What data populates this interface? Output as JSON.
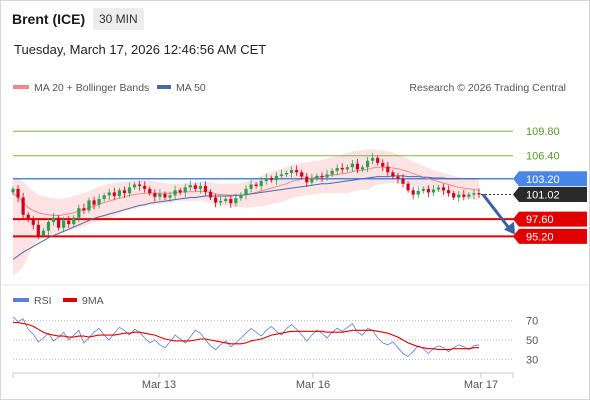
{
  "header": {
    "instrument": "Brent (ICE)",
    "timeframe": "30 MIN",
    "timestamp": "Tuesday, March 17, 2026 12:46:56 AM CET"
  },
  "legend": {
    "ma20_label": "MA 20 + Bollinger Bands",
    "ma50_label": "MA 50",
    "rsi_label": "RSI",
    "ma9_label": "9MA"
  },
  "copyright": "Research © 2026 Trading Central",
  "colors": {
    "up_candle": "#2e9e4f",
    "down_candle": "#d0021b",
    "ma20": "#f08a8a",
    "ma50": "#4a6aa8",
    "band_fill": "#fde3e3",
    "resistance": "#7db84a",
    "pivot": "#4a86e8",
    "support": "#e00000",
    "last_price_bg": "#2a2a2a",
    "arrow": "#3a63a3",
    "rsi": "#5b7fd6",
    "rsi_ma": "#e00000"
  },
  "chart_data": [
    {
      "type": "candlestick",
      "y_range": [
        89,
        114
      ],
      "x_ticks": [
        "Mar 13",
        "Mar 16",
        "Mar 17"
      ],
      "levels": [
        {
          "value": 109.8,
          "label": "109.80",
          "kind": "resistance"
        },
        {
          "value": 106.4,
          "label": "106.40",
          "kind": "resistance"
        },
        {
          "value": 103.2,
          "label": "103.20",
          "kind": "pivot"
        },
        {
          "value": 101.02,
          "label": "101.02",
          "kind": "last"
        },
        {
          "value": 97.6,
          "label": "97.60",
          "kind": "support"
        },
        {
          "value": 95.2,
          "label": "95.20",
          "kind": "support"
        }
      ],
      "close_series": [
        101.8,
        100.6,
        98.2,
        97.5,
        96.8,
        95.3,
        96.0,
        97.2,
        97.8,
        96.4,
        97.4,
        96.9,
        97.8,
        99.1,
        98.8,
        100.2,
        99.6,
        100.4,
        100.9,
        101.3,
        100.8,
        101.6,
        101.2,
        102.0,
        102.4,
        102.2,
        101.8,
        101.2,
        100.7,
        101.1,
        100.6,
        100.9,
        101.6,
        101.3,
        102.0,
        102.3,
        101.8,
        102.2,
        101.4,
        100.6,
        99.9,
        100.1,
        100.4,
        99.8,
        100.5,
        101.0,
        101.8,
        102.4,
        102.2,
        102.9,
        103.3,
        103.0,
        103.6,
        103.8,
        104.0,
        104.4,
        104.1,
        103.5,
        102.7,
        103.2,
        103.6,
        103.4,
        103.8,
        104.3,
        104.7,
        104.5,
        104.8,
        105.3,
        104.5,
        104.8,
        105.7,
        106.1,
        105.4,
        104.9,
        104.1,
        103.5,
        103.2,
        102.5,
        101.6,
        101.0,
        101.5,
        101.8,
        101.3,
        101.7,
        102.0,
        101.6,
        101.2,
        100.6,
        101.0,
        100.7,
        101.0,
        101.2,
        101.02
      ],
      "ma20_series": [
        101.2,
        100.6,
        99.9,
        99.2,
        98.8,
        98.5,
        98.3,
        98.2,
        98.1,
        98.1,
        98.2,
        98.3,
        98.5,
        98.7,
        98.9,
        99.2,
        99.4,
        99.7,
        99.9,
        100.1,
        100.3,
        100.5,
        100.7,
        100.9,
        101.0,
        101.1,
        101.2,
        101.2,
        101.2,
        101.2,
        101.2,
        101.2,
        101.3,
        101.3,
        101.4,
        101.4,
        101.4,
        101.5,
        101.4,
        101.3,
        101.1,
        101.0,
        101.0,
        100.9,
        100.9,
        100.9,
        101.0,
        101.1,
        101.3,
        101.5,
        101.7,
        101.9,
        102.1,
        102.3,
        102.5,
        102.8,
        103.0,
        103.1,
        103.2,
        103.3,
        103.4,
        103.5,
        103.6,
        103.7,
        103.8,
        103.9,
        104.0,
        104.2,
        104.3,
        104.4,
        104.5,
        104.7,
        104.8,
        104.8,
        104.8,
        104.7,
        104.6,
        104.4,
        104.2,
        103.9,
        103.7,
        103.4,
        103.2,
        103.0,
        102.8,
        102.6,
        102.4,
        102.2,
        102.0,
        101.9,
        101.8,
        101.7,
        101.6
      ],
      "ma50_series": [
        92.0,
        92.5,
        93.0,
        93.4,
        93.8,
        94.2,
        94.6,
        95.0,
        95.3,
        95.6,
        95.9,
        96.2,
        96.5,
        96.8,
        97.1,
        97.4,
        97.7,
        97.9,
        98.1,
        98.3,
        98.5,
        98.7,
        98.9,
        99.1,
        99.3,
        99.5,
        99.6,
        99.8,
        99.9,
        100.0,
        100.1,
        100.2,
        100.3,
        100.4,
        100.5,
        100.6,
        100.6,
        100.7,
        100.8,
        100.8,
        100.8,
        100.8,
        100.8,
        100.8,
        100.9,
        100.9,
        101.0,
        101.1,
        101.2,
        101.3,
        101.4,
        101.5,
        101.6,
        101.7,
        101.8,
        101.9,
        102.0,
        102.1,
        102.2,
        102.3,
        102.4,
        102.5,
        102.5,
        102.6,
        102.7,
        102.8,
        102.9,
        103.0,
        103.1,
        103.2,
        103.3,
        103.4,
        103.5,
        103.5,
        103.5,
        103.6,
        103.6,
        103.6,
        103.5,
        103.5,
        103.5,
        103.4,
        103.4,
        103.3,
        103.3,
        103.3,
        103.2,
        103.2,
        103.2,
        103.2,
        103.2,
        103.2,
        103.2
      ],
      "bb_upper_series": [
        103.6,
        103.2,
        102.8,
        102.1,
        101.5,
        101.0,
        100.8,
        100.6,
        100.5,
        100.4,
        100.5,
        100.6,
        100.8,
        101.0,
        101.2,
        101.5,
        101.8,
        102.1,
        102.3,
        102.5,
        102.6,
        102.7,
        102.8,
        102.9,
        103.0,
        103.0,
        103.0,
        102.9,
        102.8,
        102.7,
        102.6,
        102.5,
        102.5,
        102.5,
        102.6,
        102.7,
        102.7,
        102.8,
        102.8,
        102.7,
        102.6,
        102.5,
        102.5,
        102.5,
        102.5,
        102.6,
        102.8,
        103.0,
        103.3,
        103.6,
        103.9,
        104.1,
        104.4,
        104.6,
        104.8,
        105.1,
        105.3,
        105.4,
        105.5,
        105.6,
        105.7,
        105.8,
        106.0,
        106.2,
        106.4,
        106.6,
        106.8,
        107.0,
        107.1,
        107.2,
        107.3,
        107.3,
        107.2,
        107.1,
        107.0,
        106.8,
        106.6,
        106.3,
        106.0,
        105.6,
        105.3,
        105.0,
        104.7,
        104.4,
        104.2,
        104.0,
        103.8,
        103.6,
        103.4,
        103.3,
        103.2,
        103.1,
        103.0
      ],
      "bb_lower_series": [
        89.8,
        90.2,
        91.0,
        92.5,
        93.8,
        94.6,
        95.0,
        95.3,
        95.4,
        95.6,
        95.8,
        96.0,
        96.2,
        96.4,
        96.6,
        96.9,
        97.1,
        97.3,
        97.5,
        97.7,
        98.0,
        98.3,
        98.6,
        98.9,
        99.0,
        99.2,
        99.4,
        99.5,
        99.6,
        99.7,
        99.8,
        99.9,
        100.0,
        100.1,
        100.1,
        100.1,
        100.1,
        100.2,
        100.0,
        99.9,
        99.6,
        99.5,
        99.5,
        99.3,
        99.3,
        99.2,
        99.2,
        99.2,
        99.3,
        99.4,
        99.5,
        99.7,
        99.8,
        100.0,
        100.2,
        100.5,
        100.7,
        100.8,
        100.9,
        101.0,
        101.1,
        101.2,
        101.2,
        101.2,
        101.2,
        101.2,
        101.2,
        101.4,
        101.5,
        101.6,
        101.7,
        102.1,
        102.4,
        102.5,
        102.6,
        102.6,
        102.6,
        102.5,
        102.4,
        102.2,
        102.1,
        101.8,
        101.7,
        101.6,
        101.4,
        101.2,
        101.0,
        100.8,
        100.6,
        100.5,
        100.4,
        100.3,
        100.2
      ]
    },
    {
      "type": "line",
      "title": "RSI",
      "y_range": [
        22,
        80
      ],
      "y_ticks": [
        70,
        50,
        30
      ],
      "series": [
        {
          "name": "RSI",
          "values": [
            74,
            69,
            72,
            61,
            56,
            48,
            52,
            57,
            49,
            53,
            58,
            50,
            55,
            60,
            47,
            52,
            58,
            62,
            55,
            50,
            57,
            63,
            60,
            55,
            61,
            58,
            52,
            47,
            50,
            45,
            42,
            48,
            55,
            51,
            47,
            53,
            60,
            57,
            50,
            44,
            40,
            45,
            49,
            43,
            47,
            52,
            57,
            62,
            58,
            54,
            60,
            64,
            59,
            55,
            62,
            66,
            61,
            55,
            49,
            55,
            60,
            57,
            52,
            58,
            62,
            59,
            63,
            67,
            58,
            55,
            62,
            60,
            52,
            47,
            45,
            48,
            42,
            36,
            33,
            38,
            44,
            41,
            36,
            41,
            44,
            42,
            38,
            42,
            45,
            43,
            40,
            44,
            45
          ]
        },
        {
          "name": "9MA",
          "values": [
            68,
            68,
            67,
            66,
            64,
            61,
            58,
            56,
            55,
            54,
            54,
            53,
            53,
            54,
            54,
            53,
            54,
            55,
            55,
            55,
            55,
            56,
            57,
            57,
            58,
            58,
            57,
            56,
            55,
            53,
            51,
            50,
            49,
            49,
            49,
            49,
            50,
            51,
            51,
            50,
            49,
            48,
            47,
            46,
            46,
            46,
            47,
            49,
            50,
            51,
            53,
            55,
            56,
            57,
            58,
            59,
            59,
            59,
            59,
            59,
            59,
            59,
            58,
            58,
            58,
            58,
            59,
            60,
            60,
            60,
            60,
            60,
            59,
            58,
            57,
            55,
            53,
            50,
            47,
            45,
            43,
            42,
            41,
            41,
            40,
            40,
            40,
            41,
            41,
            41,
            41,
            42,
            42
          ]
        }
      ]
    }
  ]
}
